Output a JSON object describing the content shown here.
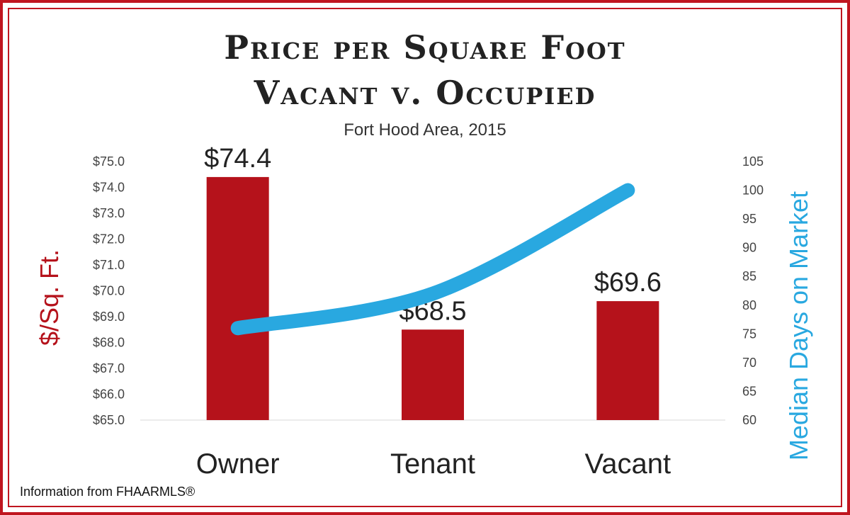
{
  "title_line1": "Price per Square Foot",
  "title_line2": "Vacant v. Occupied",
  "subtitle": "Fort Hood Area, 2015",
  "footnote": "Information from FHAARMLS®",
  "colors": {
    "bar": "#b5121b",
    "line": "#29a8e0",
    "border": "#c0161f",
    "text": "#333333"
  },
  "chart_data": {
    "type": "bar",
    "categories": [
      "Owner",
      "Tenant",
      "Vacant"
    ],
    "series": [
      {
        "axis": "left",
        "type": "bar",
        "values": [
          74.4,
          68.5,
          69.6
        ],
        "data_labels": [
          "$74.4",
          "$68.5",
          "$69.6"
        ]
      },
      {
        "axis": "right",
        "type": "line",
        "values": [
          76,
          82,
          100
        ]
      }
    ],
    "ylabel": "$/Sq. Ft.",
    "y2label": "Median Days on Market",
    "ylim": [
      65,
      75
    ],
    "y2lim": [
      60,
      105
    ],
    "y_ticks": [
      "$65.0",
      "$66.0",
      "$67.0",
      "$68.0",
      "$69.0",
      "$70.0",
      "$71.0",
      "$72.0",
      "$73.0",
      "$74.0",
      "$75.0"
    ],
    "y2_ticks": [
      "60",
      "65",
      "70",
      "75",
      "80",
      "85",
      "90",
      "95",
      "100",
      "105"
    ],
    "grid": false,
    "legend": "none"
  }
}
